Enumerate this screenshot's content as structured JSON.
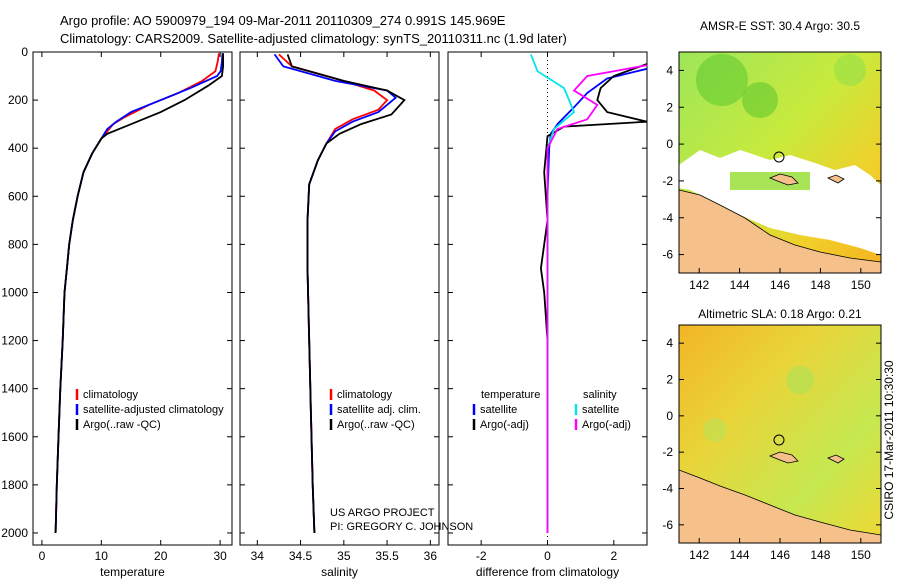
{
  "header": {
    "line1": "Argo profile: AO 5900979_194 09-Mar-2011 20110309_274 0.991S 145.969E",
    "line2": "Climatology: CARS2009. Satellite-adjusted climatology: synTS_20110311.nc (1.9d later)"
  },
  "side_label": "CSIRO 17-Mar-2011 10:30:30",
  "project": {
    "line1": "US ARGO PROJECT",
    "line2": "PI: GREGORY C. JOHNSON"
  },
  "colors": {
    "climatology": "#ff0000",
    "satellite": "#0000ff",
    "argo": "#000000",
    "satellite_diff": "#00e5ee",
    "argo_diff": "#ff00ff",
    "land": "#f5c08a"
  },
  "chart_data": [
    {
      "type": "line",
      "xlabel": "temperature",
      "ylim": [
        2050,
        0
      ],
      "yticks": [
        0,
        200,
        400,
        600,
        800,
        1000,
        1200,
        1400,
        1600,
        1800,
        2000
      ],
      "xlim": [
        -1.5,
        32
      ],
      "xticks": [
        0,
        10,
        20,
        30
      ],
      "legend": [
        "climatology",
        "satellite-adjusted climatology",
        "Argo(..raw -QC)"
      ],
      "series": [
        {
          "name": "climatology",
          "color": "#ff0000",
          "points": [
            [
              29.8,
              5
            ],
            [
              29.6,
              40
            ],
            [
              29.2,
              80
            ],
            [
              27,
              120
            ],
            [
              23,
              170
            ],
            [
              18,
              220
            ],
            [
              14,
              270
            ],
            [
              12,
              300
            ],
            [
              11,
              330
            ],
            [
              10,
              360
            ],
            [
              8.5,
              420
            ],
            [
              7,
              500
            ],
            [
              6,
              600
            ],
            [
              5.2,
              700
            ],
            [
              4.6,
              800
            ],
            [
              4.2,
              900
            ],
            [
              3.8,
              1000
            ],
            [
              3.5,
              1200
            ],
            [
              3.1,
              1400
            ],
            [
              2.8,
              1600
            ],
            [
              2.5,
              1800
            ],
            [
              2.3,
              2000
            ]
          ]
        },
        {
          "name": "satellite-adjusted climatology",
          "color": "#0000ff",
          "points": [
            [
              30.4,
              5
            ],
            [
              30.3,
              40
            ],
            [
              30.1,
              80
            ],
            [
              29.5,
              100
            ],
            [
              25,
              150
            ],
            [
              20,
              200
            ],
            [
              15,
              250
            ],
            [
              12.5,
              290
            ],
            [
              11,
              320
            ],
            [
              10,
              360
            ],
            [
              8.5,
              420
            ],
            [
              7,
              500
            ],
            [
              6,
              600
            ],
            [
              5.2,
              700
            ],
            [
              4.6,
              800
            ],
            [
              4.2,
              900
            ],
            [
              3.8,
              1000
            ],
            [
              3.5,
              1200
            ],
            [
              3.1,
              1400
            ],
            [
              2.8,
              1600
            ],
            [
              2.5,
              1800
            ],
            [
              2.3,
              2000
            ]
          ]
        },
        {
          "name": "Argo(..raw -QC)",
          "color": "#000000",
          "points": [
            [
              30.5,
              5
            ],
            [
              30.5,
              60
            ],
            [
              30.3,
              100
            ],
            [
              28,
              140
            ],
            [
              24,
              200
            ],
            [
              20,
              250
            ],
            [
              17,
              280
            ],
            [
              14,
              310
            ],
            [
              11,
              340
            ],
            [
              10,
              360
            ],
            [
              8.5,
              420
            ],
            [
              7,
              500
            ],
            [
              6,
              600
            ],
            [
              5.2,
              700
            ],
            [
              4.6,
              800
            ],
            [
              4.2,
              900
            ],
            [
              3.8,
              1000
            ],
            [
              3.5,
              1200
            ],
            [
              3.1,
              1400
            ],
            [
              2.8,
              1600
            ],
            [
              2.5,
              1800
            ],
            [
              2.3,
              2000
            ]
          ]
        }
      ]
    },
    {
      "type": "line",
      "xlabel": "salinity",
      "ylim": [
        2050,
        0
      ],
      "xlim": [
        33.8,
        36.1
      ],
      "xticks": [
        34,
        34.5,
        35,
        35.5,
        36
      ],
      "legend": [
        "climatology",
        "satellite adj. clim.",
        "Argo(..raw -QC)"
      ],
      "series": [
        {
          "name": "climatology",
          "color": "#ff0000",
          "points": [
            [
              34.25,
              10
            ],
            [
              34.4,
              60
            ],
            [
              34.9,
              110
            ],
            [
              35.35,
              160
            ],
            [
              35.5,
              200
            ],
            [
              35.4,
              240
            ],
            [
              35.1,
              280
            ],
            [
              34.9,
              320
            ],
            [
              34.8,
              380
            ],
            [
              34.7,
              450
            ],
            [
              34.6,
              550
            ],
            [
              34.58,
              700
            ],
            [
              34.58,
              900
            ],
            [
              34.6,
              1200
            ],
            [
              34.62,
              1500
            ],
            [
              34.64,
              1800
            ],
            [
              34.66,
              2000
            ]
          ]
        },
        {
          "name": "satellite adj. clim.",
          "color": "#0000ff",
          "points": [
            [
              34.2,
              10
            ],
            [
              34.3,
              60
            ],
            [
              34.9,
              120
            ],
            [
              35.5,
              160
            ],
            [
              35.6,
              190
            ],
            [
              35.4,
              250
            ],
            [
              35.1,
              290
            ],
            [
              34.9,
              330
            ],
            [
              34.8,
              380
            ],
            [
              34.7,
              450
            ],
            [
              34.6,
              550
            ],
            [
              34.58,
              700
            ],
            [
              34.58,
              900
            ],
            [
              34.6,
              1200
            ],
            [
              34.62,
              1500
            ],
            [
              34.64,
              1800
            ],
            [
              34.66,
              2000
            ]
          ]
        },
        {
          "name": "Argo(..raw -QC)",
          "color": "#000000",
          "points": [
            [
              34.35,
              10
            ],
            [
              34.4,
              60
            ],
            [
              35.0,
              120
            ],
            [
              35.5,
              160
            ],
            [
              35.7,
              200
            ],
            [
              35.55,
              260
            ],
            [
              35.2,
              300
            ],
            [
              34.95,
              340
            ],
            [
              34.8,
              380
            ],
            [
              34.7,
              450
            ],
            [
              34.6,
              550
            ],
            [
              34.58,
              700
            ],
            [
              34.58,
              900
            ],
            [
              34.6,
              1200
            ],
            [
              34.62,
              1500
            ],
            [
              34.64,
              1800
            ],
            [
              34.66,
              2000
            ]
          ]
        }
      ]
    },
    {
      "type": "line",
      "xlabel": "difference from climatology",
      "ylim": [
        2050,
        0
      ],
      "xlim": [
        -3,
        3
      ],
      "xticks": [
        -2,
        0,
        2
      ],
      "legend": {
        "temperature_header": "temperature",
        "salinity_header": "salinity",
        "entries": [
          "satellite",
          "Argo(-adj)",
          "satellite",
          "Argo(-adj)"
        ]
      },
      "series": [
        {
          "name": "satellite",
          "group": "temperature",
          "color": "#0000ff",
          "points": [
            [
              3,
              70
            ],
            [
              1.8,
              110
            ],
            [
              1.2,
              170
            ],
            [
              0.8,
              230
            ],
            [
              0.3,
              300
            ],
            [
              0.1,
              340
            ],
            [
              0.05,
              400
            ],
            [
              0,
              600
            ],
            [
              0,
              2000
            ]
          ]
        },
        {
          "name": "Argo(-adj)",
          "group": "temperature",
          "color": "#000000",
          "points": [
            [
              3,
              50
            ],
            [
              2,
              100
            ],
            [
              1.6,
              150
            ],
            [
              1.5,
              200
            ],
            [
              1.8,
              250
            ],
            [
              3,
              290
            ],
            [
              0.5,
              310
            ],
            [
              0,
              350
            ],
            [
              -0.1,
              500
            ],
            [
              0,
              700
            ],
            [
              -0.1,
              800
            ],
            [
              -0.2,
              900
            ],
            [
              -0.1,
              1000
            ],
            [
              0,
              1200
            ],
            [
              0,
              2000
            ]
          ]
        },
        {
          "name": "satellite",
          "group": "salinity",
          "color": "#00e5ee",
          "points": [
            [
              -0.5,
              10
            ],
            [
              -0.3,
              80
            ],
            [
              0.5,
              150
            ],
            [
              0.8,
              250
            ],
            [
              0.2,
              320
            ],
            [
              0,
              400
            ],
            [
              0,
              2000
            ]
          ]
        },
        {
          "name": "Argo(-adj)",
          "group": "salinity",
          "color": "#ff00ff",
          "points": [
            [
              3,
              55
            ],
            [
              2,
              80
            ],
            [
              1.2,
              100
            ],
            [
              0.8,
              160
            ],
            [
              1.5,
              220
            ],
            [
              1.2,
              280
            ],
            [
              0.3,
              320
            ],
            [
              0,
              400
            ],
            [
              0,
              2000
            ]
          ]
        }
      ]
    },
    {
      "type": "heatmap",
      "title": "AMSR-E SST: 30.4  Argo: 30.5",
      "xlim": [
        141,
        151
      ],
      "ylim": [
        -7,
        5
      ],
      "xticks": [
        142,
        144,
        146,
        148,
        150
      ],
      "yticks": [
        -6,
        -4,
        -2,
        0,
        2,
        4
      ],
      "marker": [
        146,
        -1
      ]
    },
    {
      "type": "heatmap",
      "title": "Altimetric SLA: 0.18  Argo: 0.21",
      "xlim": [
        141,
        151
      ],
      "ylim": [
        -7,
        5
      ],
      "xticks": [
        142,
        144,
        146,
        148,
        150
      ],
      "yticks": [
        -6,
        -4,
        -2,
        0,
        2,
        4
      ],
      "marker": [
        146,
        -1
      ]
    }
  ]
}
